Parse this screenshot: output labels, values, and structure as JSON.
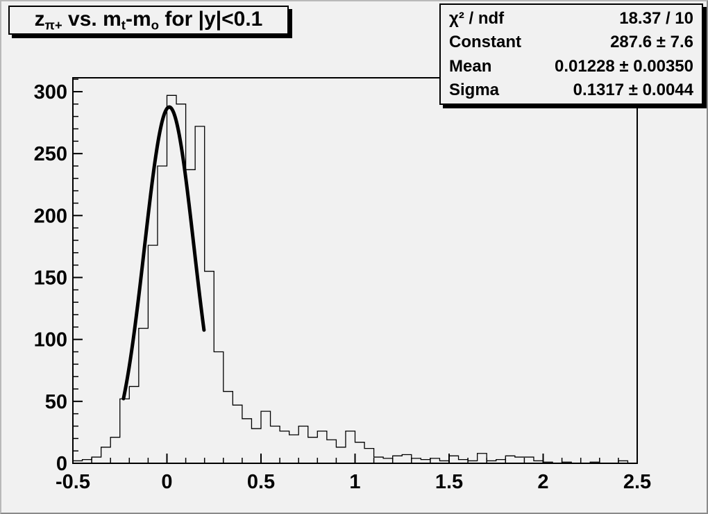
{
  "window": {
    "bg_color": "#f1f1f1",
    "accent_color": "#000000"
  },
  "title_box": {
    "segments": [
      {
        "text": "z"
      },
      {
        "text": "π+",
        "sub": true
      },
      {
        "text": " vs. m"
      },
      {
        "text": "t",
        "sub": true
      },
      {
        "text": "-m"
      },
      {
        "text": "o",
        "sub": true
      },
      {
        "text": " for |y|<0.1"
      }
    ]
  },
  "stats_box": {
    "rows": [
      {
        "label": "χ² / ndf",
        "value": "18.37 / 10"
      },
      {
        "label": "Constant",
        "value": "287.6 ± 7.6"
      },
      {
        "label": "Mean",
        "value": "0.01228 ± 0.00350"
      },
      {
        "label": "Sigma",
        "value": "0.1317 ± 0.0044"
      }
    ]
  },
  "chart_data": {
    "type": "bar",
    "subtype": "step-histogram",
    "title": "z_{π+} vs. m_{t}-m_{o} for |y|<0.1",
    "xlabel": "",
    "ylabel": "",
    "grid": false,
    "legend_position": "none",
    "line_color": "#000000",
    "background_color": "#f1f1f1",
    "x_axis": {
      "min": -0.5,
      "max": 2.5,
      "major_ticks": [
        -0.5,
        0,
        0.5,
        1,
        1.5,
        2,
        2.5
      ],
      "major_labels": [
        "-0.5",
        "0",
        "0.5",
        "1",
        "1.5",
        "2",
        "2.5"
      ],
      "minor_step": 0.1
    },
    "y_axis": {
      "min": 0,
      "max": 311.2,
      "major_ticks": [
        0,
        50,
        100,
        150,
        200,
        250,
        300
      ],
      "major_labels": [
        "0",
        "50",
        "100",
        "150",
        "200",
        "250",
        "300"
      ],
      "minor_step": 10
    },
    "bins": {
      "start": -0.5,
      "width": 0.05,
      "values": [
        2,
        3,
        5,
        13,
        21,
        52,
        62,
        109,
        176,
        240,
        297,
        290,
        237,
        272,
        155,
        90,
        58,
        47,
        36,
        28,
        42,
        30,
        26,
        23,
        30,
        21,
        26,
        19,
        13,
        26,
        17,
        12,
        5,
        4,
        6,
        7,
        4,
        3,
        4,
        2,
        6,
        3,
        2,
        8,
        2,
        3,
        6,
        5,
        5,
        2,
        1,
        0,
        1,
        0,
        0,
        1,
        0,
        0,
        2,
        0
      ]
    },
    "fit": {
      "type": "gaussian",
      "chi2": 18.37,
      "ndf": 10,
      "constant": 287.6,
      "mean": 0.01228,
      "sigma": 0.1317,
      "draw_range": [
        -0.231,
        0.198
      ]
    }
  }
}
